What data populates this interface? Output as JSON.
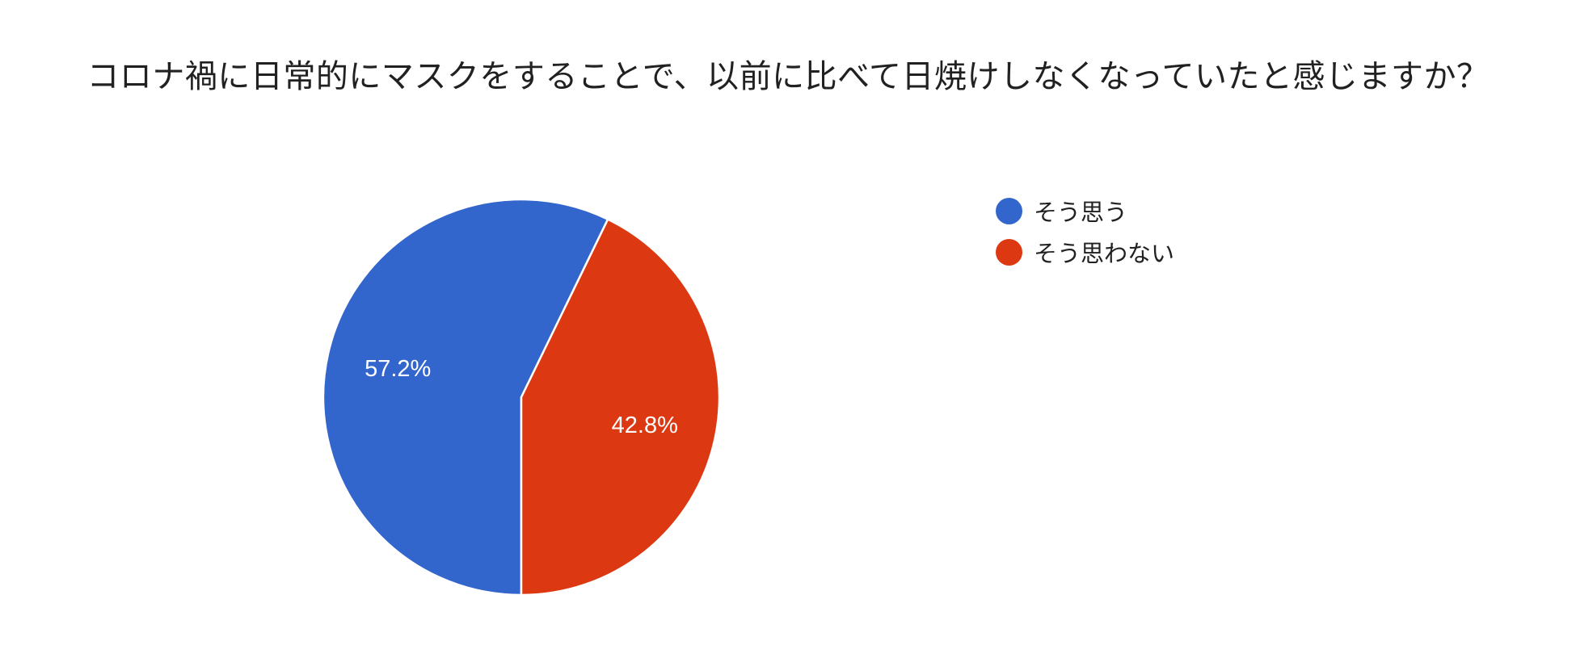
{
  "chart_data": {
    "type": "pie",
    "title": "コロナ禍に日常的にマスクをすることで、以前に比べて日焼けしなくなっていたと感じますか？",
    "slices": [
      {
        "label": "そう思う",
        "value": 57.2,
        "display": "57.2%",
        "color": "#3366cc"
      },
      {
        "label": "そう思わない",
        "value": 42.8,
        "display": "42.8%",
        "color": "#dc3912"
      }
    ],
    "legend_position": "right",
    "start_angle_deg": 90,
    "direction": "clockwise",
    "border_color": "#ffffff"
  }
}
